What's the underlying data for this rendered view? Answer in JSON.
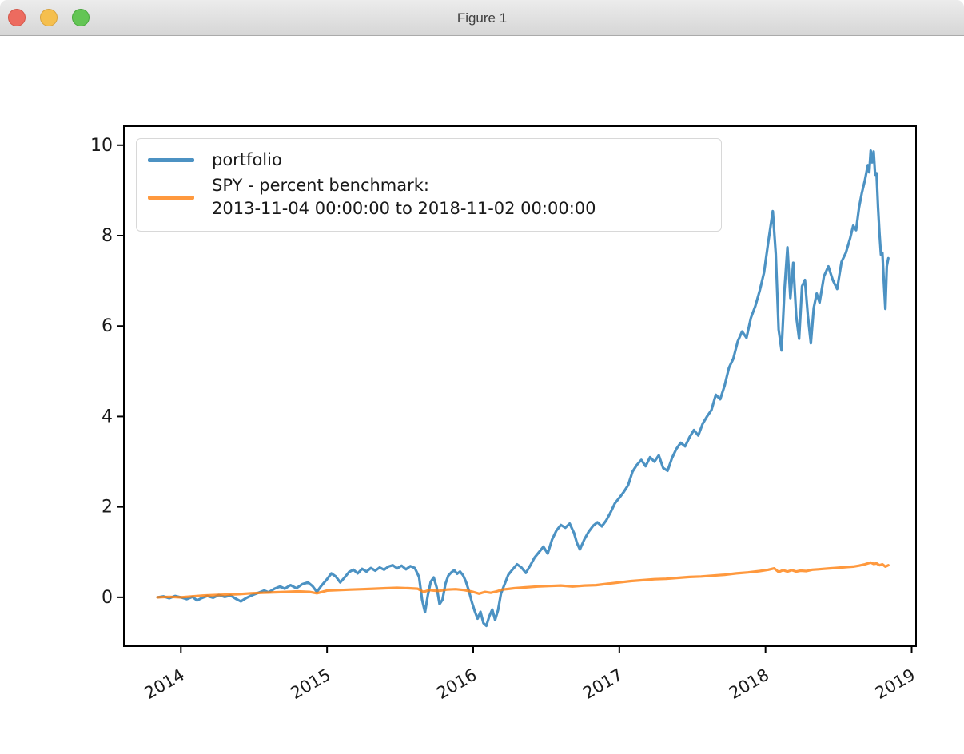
{
  "window": {
    "title": "Figure 1",
    "buttons": [
      "close",
      "minimize",
      "zoom"
    ]
  },
  "chart_data": {
    "type": "line",
    "title": "",
    "xlabel": "",
    "ylabel": "",
    "xlim": [
      2013.61,
      2019.03
    ],
    "ylim": [
      -1.08,
      10.42
    ],
    "x_ticks": [
      2014,
      2015,
      2016,
      2017,
      2018,
      2019
    ],
    "x_tick_labels": [
      "2014",
      "2015",
      "2016",
      "2017",
      "2018",
      "2019"
    ],
    "y_ticks": [
      0,
      2,
      4,
      6,
      8,
      10
    ],
    "y_tick_labels": [
      "0",
      "2",
      "4",
      "6",
      "8",
      "10"
    ],
    "grid": false,
    "legend_position": "upper-left",
    "x_tick_rotation_deg": -30,
    "series": [
      {
        "name": "portfolio",
        "color": "#1f77b4",
        "opacity": 0.8,
        "points": [
          [
            2013.84,
            0.0
          ],
          [
            2013.88,
            0.02
          ],
          [
            2013.92,
            -0.02
          ],
          [
            2013.96,
            0.03
          ],
          [
            2014.0,
            0.0
          ],
          [
            2014.04,
            -0.04
          ],
          [
            2014.08,
            0.01
          ],
          [
            2014.11,
            -0.07
          ],
          [
            2014.14,
            -0.02
          ],
          [
            2014.18,
            0.03
          ],
          [
            2014.22,
            -0.01
          ],
          [
            2014.26,
            0.05
          ],
          [
            2014.3,
            0.01
          ],
          [
            2014.34,
            0.04
          ],
          [
            2014.38,
            -0.04
          ],
          [
            2014.41,
            -0.09
          ],
          [
            2014.45,
            -0.01
          ],
          [
            2014.49,
            0.05
          ],
          [
            2014.53,
            0.1
          ],
          [
            2014.57,
            0.15
          ],
          [
            2014.6,
            0.11
          ],
          [
            2014.64,
            0.19
          ],
          [
            2014.68,
            0.24
          ],
          [
            2014.71,
            0.19
          ],
          [
            2014.75,
            0.27
          ],
          [
            2014.79,
            0.2
          ],
          [
            2014.83,
            0.29
          ],
          [
            2014.87,
            0.33
          ],
          [
            2014.9,
            0.25
          ],
          [
            2014.93,
            0.12
          ],
          [
            2014.96,
            0.25
          ],
          [
            2015.0,
            0.4
          ],
          [
            2015.03,
            0.53
          ],
          [
            2015.06,
            0.46
          ],
          [
            2015.09,
            0.33
          ],
          [
            2015.12,
            0.44
          ],
          [
            2015.15,
            0.56
          ],
          [
            2015.18,
            0.61
          ],
          [
            2015.21,
            0.53
          ],
          [
            2015.24,
            0.63
          ],
          [
            2015.27,
            0.57
          ],
          [
            2015.3,
            0.65
          ],
          [
            2015.33,
            0.59
          ],
          [
            2015.36,
            0.66
          ],
          [
            2015.39,
            0.61
          ],
          [
            2015.42,
            0.68
          ],
          [
            2015.45,
            0.71
          ],
          [
            2015.48,
            0.64
          ],
          [
            2015.51,
            0.7
          ],
          [
            2015.54,
            0.62
          ],
          [
            2015.57,
            0.69
          ],
          [
            2015.6,
            0.65
          ],
          [
            2015.63,
            0.45
          ],
          [
            2015.65,
            -0.05
          ],
          [
            2015.67,
            -0.33
          ],
          [
            2015.69,
            0.05
          ],
          [
            2015.71,
            0.35
          ],
          [
            2015.73,
            0.44
          ],
          [
            2015.75,
            0.22
          ],
          [
            2015.77,
            -0.15
          ],
          [
            2015.79,
            -0.05
          ],
          [
            2015.81,
            0.3
          ],
          [
            2015.83,
            0.48
          ],
          [
            2015.85,
            0.55
          ],
          [
            2015.87,
            0.6
          ],
          [
            2015.89,
            0.52
          ],
          [
            2015.91,
            0.57
          ],
          [
            2015.93,
            0.49
          ],
          [
            2015.95,
            0.35
          ],
          [
            2015.97,
            0.15
          ],
          [
            2015.99,
            -0.1
          ],
          [
            2016.01,
            -0.3
          ],
          [
            2016.03,
            -0.47
          ],
          [
            2016.05,
            -0.32
          ],
          [
            2016.07,
            -0.57
          ],
          [
            2016.09,
            -0.63
          ],
          [
            2016.11,
            -0.42
          ],
          [
            2016.13,
            -0.27
          ],
          [
            2016.15,
            -0.5
          ],
          [
            2016.17,
            -0.28
          ],
          [
            2016.19,
            0.08
          ],
          [
            2016.21,
            0.25
          ],
          [
            2016.24,
            0.5
          ],
          [
            2016.27,
            0.62
          ],
          [
            2016.3,
            0.73
          ],
          [
            2016.33,
            0.66
          ],
          [
            2016.36,
            0.54
          ],
          [
            2016.39,
            0.7
          ],
          [
            2016.42,
            0.88
          ],
          [
            2016.45,
            1.0
          ],
          [
            2016.48,
            1.12
          ],
          [
            2016.51,
            0.97
          ],
          [
            2016.54,
            1.28
          ],
          [
            2016.57,
            1.48
          ],
          [
            2016.6,
            1.6
          ],
          [
            2016.63,
            1.54
          ],
          [
            2016.66,
            1.63
          ],
          [
            2016.69,
            1.42
          ],
          [
            2016.71,
            1.2
          ],
          [
            2016.73,
            1.06
          ],
          [
            2016.76,
            1.28
          ],
          [
            2016.79,
            1.45
          ],
          [
            2016.82,
            1.58
          ],
          [
            2016.85,
            1.66
          ],
          [
            2016.88,
            1.57
          ],
          [
            2016.91,
            1.7
          ],
          [
            2016.94,
            1.88
          ],
          [
            2016.97,
            2.08
          ],
          [
            2017.0,
            2.2
          ],
          [
            2017.03,
            2.33
          ],
          [
            2017.06,
            2.48
          ],
          [
            2017.09,
            2.78
          ],
          [
            2017.12,
            2.93
          ],
          [
            2017.15,
            3.04
          ],
          [
            2017.18,
            2.9
          ],
          [
            2017.21,
            3.1
          ],
          [
            2017.24,
            3.0
          ],
          [
            2017.27,
            3.14
          ],
          [
            2017.3,
            2.86
          ],
          [
            2017.33,
            2.8
          ],
          [
            2017.36,
            3.08
          ],
          [
            2017.39,
            3.28
          ],
          [
            2017.42,
            3.42
          ],
          [
            2017.45,
            3.34
          ],
          [
            2017.48,
            3.54
          ],
          [
            2017.51,
            3.7
          ],
          [
            2017.54,
            3.58
          ],
          [
            2017.57,
            3.84
          ],
          [
            2017.6,
            4.0
          ],
          [
            2017.63,
            4.14
          ],
          [
            2017.66,
            4.48
          ],
          [
            2017.69,
            4.38
          ],
          [
            2017.72,
            4.68
          ],
          [
            2017.75,
            5.08
          ],
          [
            2017.78,
            5.28
          ],
          [
            2017.81,
            5.66
          ],
          [
            2017.84,
            5.88
          ],
          [
            2017.87,
            5.74
          ],
          [
            2017.9,
            6.18
          ],
          [
            2017.93,
            6.44
          ],
          [
            2017.96,
            6.78
          ],
          [
            2017.99,
            7.18
          ],
          [
            2018.02,
            7.88
          ],
          [
            2018.05,
            8.54
          ],
          [
            2018.07,
            7.6
          ],
          [
            2018.09,
            5.92
          ],
          [
            2018.11,
            5.46
          ],
          [
            2018.13,
            6.8
          ],
          [
            2018.15,
            7.74
          ],
          [
            2018.17,
            6.62
          ],
          [
            2018.19,
            7.4
          ],
          [
            2018.21,
            6.22
          ],
          [
            2018.23,
            5.72
          ],
          [
            2018.25,
            6.88
          ],
          [
            2018.27,
            7.02
          ],
          [
            2018.29,
            6.22
          ],
          [
            2018.31,
            5.62
          ],
          [
            2018.33,
            6.4
          ],
          [
            2018.35,
            6.72
          ],
          [
            2018.37,
            6.52
          ],
          [
            2018.4,
            7.1
          ],
          [
            2018.43,
            7.32
          ],
          [
            2018.46,
            7.02
          ],
          [
            2018.49,
            6.82
          ],
          [
            2018.52,
            7.42
          ],
          [
            2018.55,
            7.62
          ],
          [
            2018.58,
            7.95
          ],
          [
            2018.6,
            8.22
          ],
          [
            2018.62,
            8.12
          ],
          [
            2018.64,
            8.62
          ],
          [
            2018.66,
            8.95
          ],
          [
            2018.68,
            9.22
          ],
          [
            2018.7,
            9.56
          ],
          [
            2018.71,
            9.4
          ],
          [
            2018.72,
            9.88
          ],
          [
            2018.73,
            9.62
          ],
          [
            2018.74,
            9.86
          ],
          [
            2018.75,
            9.35
          ],
          [
            2018.76,
            9.38
          ],
          [
            2018.77,
            8.62
          ],
          [
            2018.78,
            8.05
          ],
          [
            2018.79,
            7.58
          ],
          [
            2018.8,
            7.62
          ],
          [
            2018.81,
            6.95
          ],
          [
            2018.82,
            6.38
          ],
          [
            2018.83,
            7.32
          ],
          [
            2018.84,
            7.5
          ]
        ]
      },
      {
        "name": "SPY - percent benchmark:\n2013-11-04 00:00:00 to 2018-11-02 00:00:00",
        "color": "#ff7f0e",
        "opacity": 0.8,
        "points": [
          [
            2013.84,
            0.0
          ],
          [
            2013.92,
            0.01
          ],
          [
            2014.0,
            0.0
          ],
          [
            2014.08,
            0.02
          ],
          [
            2014.16,
            0.04
          ],
          [
            2014.24,
            0.05
          ],
          [
            2014.32,
            0.06
          ],
          [
            2014.4,
            0.07
          ],
          [
            2014.48,
            0.09
          ],
          [
            2014.56,
            0.1
          ],
          [
            2014.64,
            0.11
          ],
          [
            2014.72,
            0.12
          ],
          [
            2014.8,
            0.13
          ],
          [
            2014.88,
            0.12
          ],
          [
            2014.93,
            0.09
          ],
          [
            2015.0,
            0.15
          ],
          [
            2015.08,
            0.16
          ],
          [
            2015.16,
            0.17
          ],
          [
            2015.24,
            0.18
          ],
          [
            2015.32,
            0.19
          ],
          [
            2015.4,
            0.2
          ],
          [
            2015.48,
            0.21
          ],
          [
            2015.56,
            0.2
          ],
          [
            2015.62,
            0.19
          ],
          [
            2015.66,
            0.12
          ],
          [
            2015.7,
            0.16
          ],
          [
            2015.76,
            0.14
          ],
          [
            2015.82,
            0.17
          ],
          [
            2015.88,
            0.18
          ],
          [
            2015.94,
            0.16
          ],
          [
            2016.0,
            0.12
          ],
          [
            2016.04,
            0.08
          ],
          [
            2016.08,
            0.12
          ],
          [
            2016.12,
            0.1
          ],
          [
            2016.16,
            0.13
          ],
          [
            2016.2,
            0.17
          ],
          [
            2016.28,
            0.2
          ],
          [
            2016.36,
            0.22
          ],
          [
            2016.44,
            0.24
          ],
          [
            2016.52,
            0.25
          ],
          [
            2016.6,
            0.26
          ],
          [
            2016.68,
            0.24
          ],
          [
            2016.76,
            0.26
          ],
          [
            2016.84,
            0.27
          ],
          [
            2016.92,
            0.3
          ],
          [
            2017.0,
            0.33
          ],
          [
            2017.08,
            0.36
          ],
          [
            2017.16,
            0.38
          ],
          [
            2017.24,
            0.4
          ],
          [
            2017.32,
            0.41
          ],
          [
            2017.4,
            0.43
          ],
          [
            2017.48,
            0.45
          ],
          [
            2017.56,
            0.46
          ],
          [
            2017.64,
            0.48
          ],
          [
            2017.72,
            0.5
          ],
          [
            2017.8,
            0.53
          ],
          [
            2017.88,
            0.55
          ],
          [
            2017.96,
            0.58
          ],
          [
            2018.02,
            0.61
          ],
          [
            2018.06,
            0.64
          ],
          [
            2018.09,
            0.56
          ],
          [
            2018.12,
            0.6
          ],
          [
            2018.15,
            0.57
          ],
          [
            2018.18,
            0.6
          ],
          [
            2018.21,
            0.57
          ],
          [
            2018.24,
            0.59
          ],
          [
            2018.28,
            0.58
          ],
          [
            2018.32,
            0.61
          ],
          [
            2018.36,
            0.62
          ],
          [
            2018.4,
            0.63
          ],
          [
            2018.44,
            0.64
          ],
          [
            2018.48,
            0.65
          ],
          [
            2018.52,
            0.66
          ],
          [
            2018.56,
            0.67
          ],
          [
            2018.6,
            0.68
          ],
          [
            2018.64,
            0.7
          ],
          [
            2018.68,
            0.73
          ],
          [
            2018.72,
            0.77
          ],
          [
            2018.74,
            0.74
          ],
          [
            2018.76,
            0.75
          ],
          [
            2018.78,
            0.71
          ],
          [
            2018.8,
            0.73
          ],
          [
            2018.82,
            0.68
          ],
          [
            2018.84,
            0.71
          ]
        ]
      }
    ]
  }
}
